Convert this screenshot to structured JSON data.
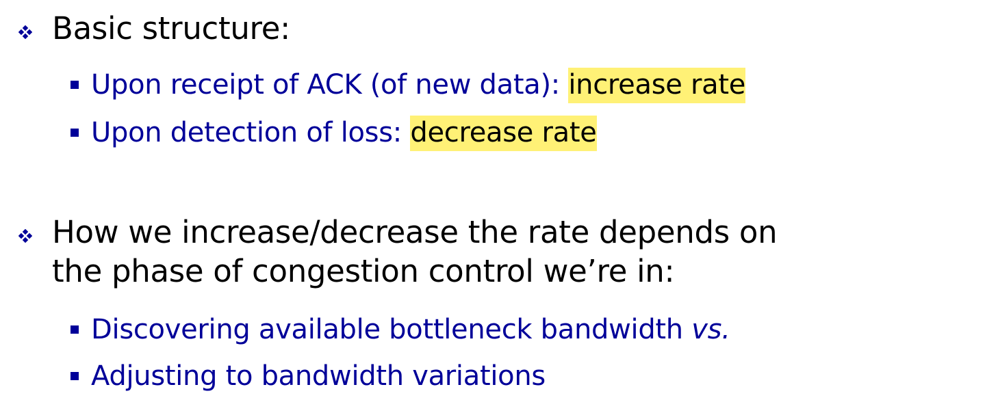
{
  "bullets": [
    {
      "text": "Basic structure:",
      "sub": [
        {
          "prefix": "Upon receipt of ACK (of new data):",
          "highlight": "increase rate"
        },
        {
          "prefix": "Upon detection of loss:",
          "highlight": "decrease rate"
        }
      ]
    },
    {
      "line1": "How we increase/decrease the rate depends on",
      "line2": "the phase of congestion control we’re in:",
      "sub": [
        {
          "text": "Discovering available bottleneck bandwidth",
          "italic": "vs."
        },
        {
          "text": "Adjusting to bandwidth variations"
        }
      ]
    }
  ],
  "colors": {
    "primary_text": "#000000",
    "sub_text": "#000099",
    "highlight": "#fff176"
  }
}
